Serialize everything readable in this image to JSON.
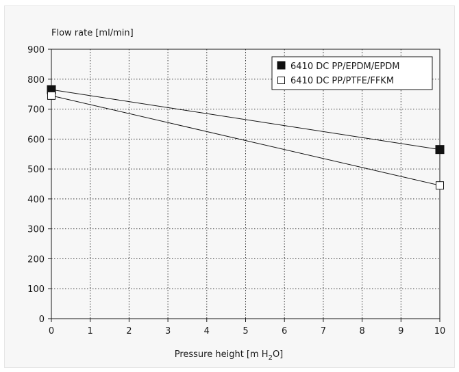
{
  "chart_data": {
    "type": "line",
    "title": "",
    "ylabel": "Flow rate [ml/min]",
    "xlabel": {
      "prefix": "Pressure height [m H",
      "subscript": "2",
      "suffix": "O]"
    },
    "xlim": [
      0,
      10
    ],
    "ylim": [
      0,
      900
    ],
    "x_ticks": [
      0,
      1,
      2,
      3,
      4,
      5,
      6,
      7,
      8,
      9,
      10
    ],
    "y_ticks": [
      0,
      100,
      200,
      300,
      400,
      500,
      600,
      700,
      800,
      900
    ],
    "grid": true,
    "grid_style": "dotted",
    "legend_position": "top-right",
    "series": [
      {
        "name": "6410 DC PP/EPDM/EPDM",
        "marker": "filled-square",
        "color": "#111111",
        "points": [
          {
            "x": 0,
            "y": 765
          },
          {
            "x": 10,
            "y": 565
          }
        ]
      },
      {
        "name": "6410 DC PP/PTFE/FFKM",
        "marker": "open-square",
        "color": "#111111",
        "points": [
          {
            "x": 0,
            "y": 745
          },
          {
            "x": 10,
            "y": 445
          }
        ]
      }
    ]
  }
}
